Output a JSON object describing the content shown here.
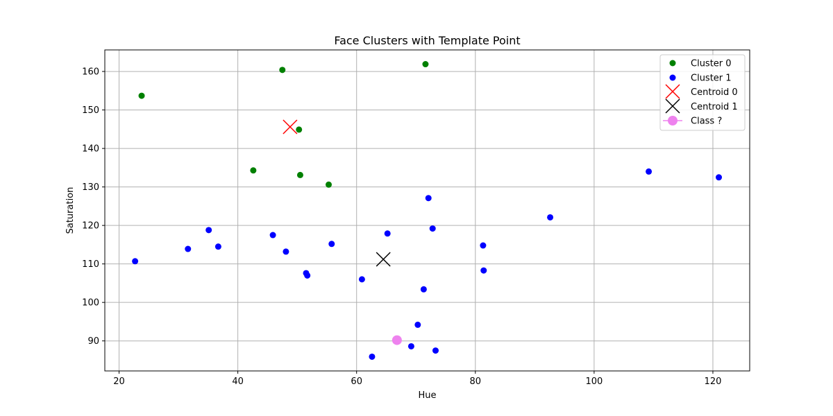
{
  "chart_data": {
    "type": "scatter",
    "title": "Face Clusters with Template Point",
    "xlabel": "Hue",
    "ylabel": "Saturation",
    "xlim": [
      17.6,
      126.2
    ],
    "ylim": [
      82.2,
      165.6
    ],
    "xticks": [
      20,
      40,
      60,
      80,
      100,
      120
    ],
    "yticks": [
      90,
      100,
      110,
      120,
      130,
      140,
      150,
      160
    ],
    "grid": true,
    "legend_position": "top-right",
    "series": [
      {
        "name": "Cluster 0",
        "color": "#008000",
        "marker": "circle",
        "points": [
          [
            23.8,
            153.7
          ],
          [
            47.5,
            160.4
          ],
          [
            71.6,
            161.9
          ],
          [
            50.3,
            144.9
          ],
          [
            42.6,
            134.3
          ],
          [
            50.5,
            133.1
          ],
          [
            55.3,
            130.6
          ]
        ]
      },
      {
        "name": "Cluster 1",
        "color": "#0000ff",
        "marker": "circle",
        "points": [
          [
            22.7,
            110.7
          ],
          [
            31.6,
            113.9
          ],
          [
            35.1,
            118.8
          ],
          [
            36.7,
            114.5
          ],
          [
            45.9,
            117.5
          ],
          [
            48.1,
            113.2
          ],
          [
            51.5,
            107.6
          ],
          [
            51.7,
            107.0
          ],
          [
            55.8,
            115.2
          ],
          [
            60.9,
            106.0
          ],
          [
            62.6,
            85.9
          ],
          [
            65.2,
            117.9
          ],
          [
            69.2,
            88.6
          ],
          [
            70.3,
            94.2
          ],
          [
            71.3,
            103.4
          ],
          [
            72.1,
            127.1
          ],
          [
            72.8,
            119.2
          ],
          [
            73.3,
            87.5
          ],
          [
            81.3,
            114.8
          ],
          [
            81.4,
            108.3
          ],
          [
            92.6,
            122.1
          ],
          [
            109.2,
            134.0
          ],
          [
            121.0,
            132.5
          ]
        ]
      }
    ],
    "centroids": [
      {
        "name": "Centroid 0",
        "color": "#ff0000",
        "marker": "x",
        "x": 48.8,
        "y": 145.6
      },
      {
        "name": "Centroid 1",
        "color": "#000000",
        "marker": "x",
        "x": 64.5,
        "y": 111.2
      }
    ],
    "template_point": {
      "name": "Class ?",
      "color": "#ee82ee",
      "marker": "circle-line",
      "x": 66.8,
      "y": 90.2
    }
  }
}
